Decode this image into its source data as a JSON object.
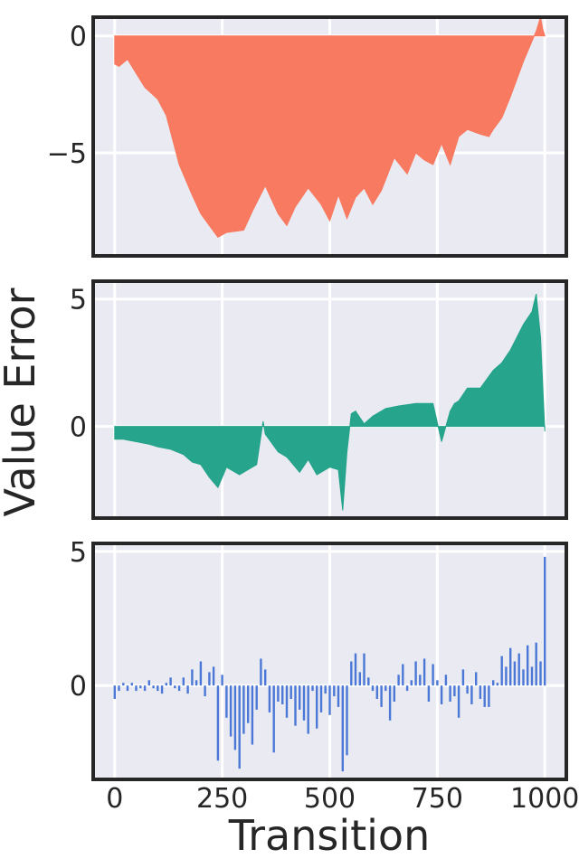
{
  "figure": {
    "ylabel": "Value Error",
    "xlabel": "Transition",
    "x_ticks": [
      "0",
      "250",
      "500",
      "750",
      "1000"
    ]
  },
  "chart_data": [
    {
      "type": "area",
      "color": "#f8785e",
      "xlim": [
        -50,
        1050
      ],
      "ylim": [
        -9.4,
        0.8
      ],
      "x_ticks": [
        0,
        250,
        500,
        750,
        1000
      ],
      "y_ticks": [
        0,
        -5
      ],
      "y_tick_labels": [
        "0",
        "−5"
      ],
      "grid": true,
      "x": [
        0,
        10,
        30,
        50,
        70,
        100,
        120,
        150,
        180,
        200,
        220,
        240,
        260,
        300,
        320,
        350,
        380,
        400,
        420,
        450,
        480,
        500,
        520,
        540,
        560,
        580,
        600,
        620,
        650,
        680,
        700,
        720,
        740,
        760,
        780,
        800,
        820,
        850,
        870,
        880,
        900,
        920,
        950,
        980,
        990,
        995,
        1000
      ],
      "y": [
        -1.2,
        -1.3,
        -1.0,
        -1.6,
        -2.2,
        -2.7,
        -3.4,
        -5.5,
        -6.8,
        -7.6,
        -8.1,
        -8.6,
        -8.4,
        -8.3,
        -7.5,
        -6.4,
        -7.6,
        -8.1,
        -7.3,
        -6.5,
        -7.2,
        -7.9,
        -6.8,
        -7.8,
        -6.9,
        -6.5,
        -7.2,
        -6.6,
        -5.2,
        -5.9,
        -5.0,
        -5.3,
        -5.5,
        -4.6,
        -5.5,
        -4.3,
        -4.0,
        -4.2,
        -4.3,
        -4.0,
        -3.5,
        -2.6,
        -1.1,
        0.2,
        0.8,
        0.3,
        0.0
      ]
    },
    {
      "type": "area",
      "color": "#23a38a",
      "xlim": [
        -50,
        1050
      ],
      "ylim": [
        -3.6,
        5.7
      ],
      "x_ticks": [
        0,
        250,
        500,
        750,
        1000
      ],
      "y_ticks": [
        5,
        0
      ],
      "y_tick_labels": [
        "5",
        "0"
      ],
      "grid": true,
      "x": [
        0,
        20,
        50,
        80,
        100,
        130,
        160,
        180,
        200,
        220,
        240,
        260,
        290,
        330,
        345,
        350,
        380,
        400,
        430,
        450,
        470,
        500,
        520,
        530,
        540,
        550,
        560,
        580,
        600,
        630,
        660,
        700,
        740,
        760,
        780,
        790,
        800,
        820,
        850,
        880,
        900,
        920,
        950,
        970,
        980,
        990,
        1000
      ],
      "y": [
        -0.5,
        -0.5,
        -0.6,
        -0.7,
        -0.8,
        -0.9,
        -1.1,
        -1.4,
        -1.5,
        -2.0,
        -2.4,
        -1.6,
        -1.9,
        -1.5,
        0.2,
        -0.3,
        -1.0,
        -1.2,
        -1.8,
        -1.3,
        -1.9,
        -1.6,
        -1.7,
        -3.3,
        -1.0,
        0.5,
        0.6,
        0.1,
        0.4,
        0.7,
        0.8,
        0.9,
        0.9,
        -0.6,
        0.6,
        0.9,
        1.0,
        1.5,
        1.5,
        2.2,
        2.5,
        3.0,
        4.0,
        4.5,
        5.2,
        3.5,
        -0.2
      ]
    },
    {
      "type": "bar",
      "color": "#4b78d6",
      "xlim": [
        -50,
        1050
      ],
      "ylim": [
        -3.5,
        5.3
      ],
      "x_ticks": [
        0,
        250,
        500,
        750,
        1000
      ],
      "y_ticks": [
        5,
        0
      ],
      "y_tick_labels": [
        "5",
        "0"
      ],
      "grid": true,
      "x": [
        0,
        10,
        20,
        30,
        40,
        50,
        60,
        70,
        80,
        90,
        100,
        110,
        120,
        130,
        140,
        150,
        160,
        170,
        180,
        190,
        200,
        210,
        220,
        230,
        240,
        250,
        260,
        270,
        280,
        290,
        300,
        310,
        320,
        330,
        340,
        350,
        360,
        370,
        380,
        390,
        400,
        410,
        420,
        430,
        440,
        450,
        460,
        470,
        480,
        490,
        500,
        510,
        520,
        530,
        540,
        550,
        560,
        570,
        580,
        590,
        600,
        610,
        620,
        630,
        640,
        650,
        660,
        670,
        680,
        690,
        700,
        710,
        720,
        730,
        740,
        750,
        760,
        770,
        780,
        790,
        800,
        810,
        820,
        830,
        840,
        850,
        860,
        870,
        880,
        890,
        900,
        910,
        920,
        930,
        940,
        950,
        960,
        970,
        980,
        990,
        1000
      ],
      "y": [
        -0.5,
        -0.2,
        0.1,
        -0.2,
        0.1,
        -0.2,
        -0.1,
        -0.2,
        0.2,
        -0.1,
        -0.2,
        -0.3,
        0.1,
        0.3,
        -0.1,
        -0.2,
        0.3,
        -0.3,
        0.6,
        0.2,
        0.9,
        -0.4,
        0.5,
        0.7,
        -2.8,
        0.4,
        -1.2,
        -1.9,
        -2.4,
        -3.1,
        -1.8,
        -1.4,
        -2.2,
        -0.9,
        1.0,
        0.6,
        -1.0,
        -2.5,
        -0.6,
        -0.7,
        -1.2,
        -0.5,
        -1.5,
        -0.9,
        -1.3,
        -1.8,
        -0.2,
        -1.6,
        -1.0,
        -0.3,
        -1.1,
        -0.4,
        -0.8,
        -3.2,
        -2.6,
        0.9,
        1.2,
        0.5,
        1.2,
        0.3,
        -0.2,
        -0.5,
        -0.8,
        -0.2,
        -1.3,
        -0.6,
        0.4,
        0.8,
        -0.2,
        0.2,
        0.9,
        0.4,
        1.0,
        -0.6,
        0.8,
        0.2,
        -0.7,
        0.4,
        -0.6,
        -0.4,
        -1.2,
        0.6,
        -0.3,
        -0.7,
        0.5,
        -0.5,
        -0.8,
        -0.8,
        0.2,
        0.1,
        1.1,
        0.7,
        1.4,
        0.9,
        1.2,
        0.6,
        1.5,
        0.7,
        1.6,
        0.9,
        4.8
      ]
    }
  ]
}
